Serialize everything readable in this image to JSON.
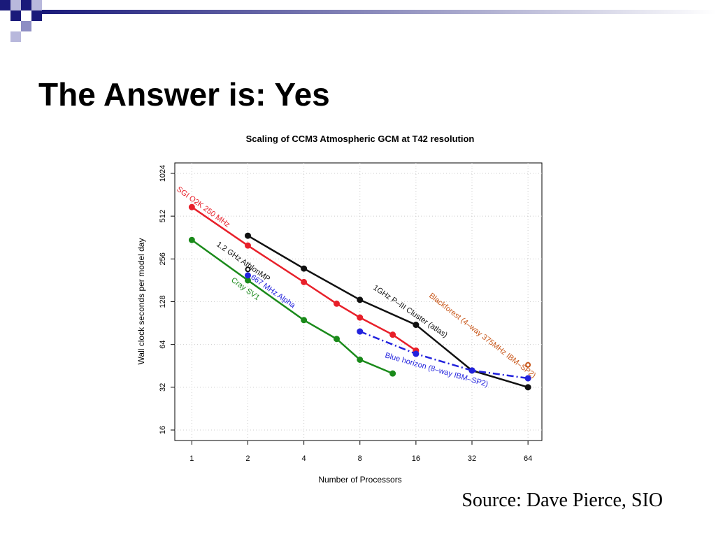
{
  "slide": {
    "title": "The Answer is: Yes",
    "source": "Source: Dave Pierce, SIO"
  },
  "chart_data": {
    "type": "line",
    "title": "Scaling of CCM3 Atmospheric GCM at T42 resolution",
    "x_label": "Number of Processors",
    "y_label": "Wall clock seconds per model day",
    "log_x": true,
    "log_y": true,
    "grid": true,
    "xlim": [
      0.81,
      76
    ],
    "ylim": [
      13.5,
      1213
    ],
    "xticks": [
      1,
      2,
      4,
      8,
      16,
      32,
      64
    ],
    "yticks": [
      16,
      32,
      64,
      128,
      256,
      512,
      1024
    ],
    "series": [
      {
        "name": "SGI O2K 250 MHz",
        "color": "#e8202a",
        "x": [
          1,
          2,
          4,
          6,
          8,
          12,
          16
        ],
        "values": [
          593,
          318,
          176,
          124,
          99,
          75,
          58
        ]
      },
      {
        "name": "1GHz P–III Cluster (atlas)",
        "color": "#111111",
        "x": [
          2,
          4,
          8,
          16,
          32,
          64
        ],
        "values": [
          373,
          219,
          132,
          88,
          42,
          32
        ]
      },
      {
        "name": "Cray SV1",
        "color": "#1a8a1a",
        "x": [
          1,
          2,
          4,
          6,
          8,
          12
        ],
        "values": [
          348,
          181,
          95,
          70,
          50,
          40
        ]
      },
      {
        "name": "Blue horizon (8–way IBM–SP2)",
        "color": "#2222dd",
        "linestyle": "dashdot",
        "x": [
          8,
          16,
          32,
          64
        ],
        "values": [
          79,
          55,
          42,
          37
        ]
      },
      {
        "name": "1.2 GHz AthlonMP",
        "color": "#111111",
        "marker": "open",
        "linestyle": "none",
        "x": [
          2
        ],
        "values": [
          216
        ]
      },
      {
        "name": "667 MHz Alpha",
        "color": "#2222dd",
        "linestyle": "none",
        "x": [
          2
        ],
        "values": [
          196
        ]
      },
      {
        "name": "Blackforest (4–way 375MHz IBM–SP2)",
        "color": "#c8571a",
        "marker": "open",
        "linestyle": "none",
        "x": [
          64
        ],
        "values": [
          46
        ]
      }
    ]
  }
}
